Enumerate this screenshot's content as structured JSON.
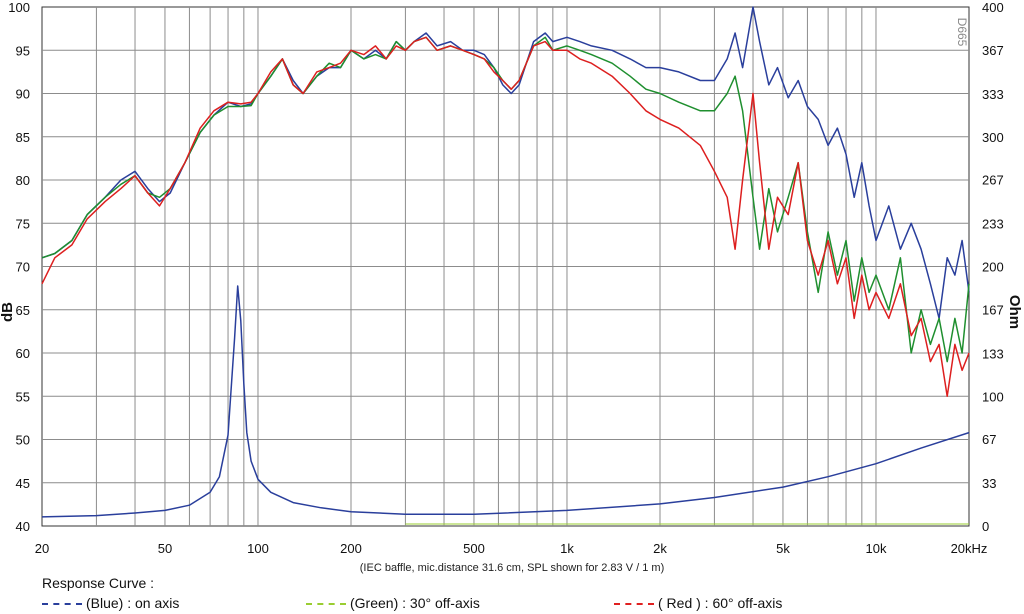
{
  "chart_data": {
    "type": "line",
    "x_scale": "log",
    "xlim": [
      20,
      20000
    ],
    "ylim_left": [
      40,
      100
    ],
    "ylim_right": [
      0,
      400
    ],
    "ylabel_left": "dB",
    "ylabel_right": "Ohm",
    "grid": true,
    "x_ticks": [
      "20",
      "50",
      "100",
      "200",
      "500",
      "1k",
      "2k",
      "5k",
      "10k",
      "20kHz"
    ],
    "x_tick_values": [
      20,
      50,
      100,
      200,
      500,
      1000,
      2000,
      5000,
      10000,
      20000
    ],
    "y_ticks_left": [
      100,
      95,
      90,
      85,
      80,
      75,
      70,
      65,
      60,
      55,
      50,
      45,
      40
    ],
    "y_ticks_right": [
      400,
      367,
      333,
      300,
      267,
      233,
      200,
      167,
      133,
      100,
      67,
      33,
      0
    ],
    "watermark": "D665",
    "note": "(IEC baffle, mic.distance 31.6 cm, SPL shown for 2.83 V / 1 m)",
    "legend_title": "Response Curve :",
    "legend": [
      {
        "label": "(Blue)  : on axis",
        "color": "#2a3f9c"
      },
      {
        "label": "(Green) : 30° off-axis",
        "color": "#9acd32"
      },
      {
        "label": "( Red )  : 60° off-axis",
        "color": "#e02020"
      }
    ],
    "series": [
      {
        "key": "on_axis",
        "color": "#2a3f9c",
        "axis": "left",
        "x": [
          20,
          22,
          25,
          28,
          32,
          36,
          40,
          44,
          48,
          52,
          58,
          65,
          72,
          80,
          88,
          95,
          100,
          110,
          120,
          130,
          140,
          155,
          170,
          185,
          200,
          220,
          240,
          260,
          280,
          300,
          320,
          350,
          380,
          420,
          460,
          500,
          540,
          580,
          620,
          660,
          700,
          780,
          850,
          900,
          1000,
          1100,
          1200,
          1400,
          1600,
          1800,
          2000,
          2300,
          2700,
          3000,
          3300,
          3500,
          3700,
          4000,
          4200,
          4500,
          4800,
          5200,
          5600,
          6000,
          6500,
          7000,
          7500,
          8000,
          8500,
          9000,
          9500,
          10000,
          11000,
          12000,
          13000,
          14000,
          15000,
          16000,
          17000,
          18000,
          19000,
          20000
        ],
        "y": [
          71,
          71.5,
          73,
          76,
          78,
          80,
          81,
          79,
          77.5,
          78.5,
          82,
          85.5,
          87.5,
          89,
          88.5,
          88.8,
          90,
          92,
          94,
          91.5,
          90,
          92,
          93,
          93,
          95,
          94,
          95,
          94,
          96,
          95,
          96,
          97,
          95.5,
          96,
          95,
          95,
          94.5,
          93,
          91,
          90,
          91,
          96,
          97,
          96,
          96.5,
          96,
          95.5,
          95,
          94,
          93,
          93,
          92.5,
          91.5,
          91.5,
          94,
          97,
          93,
          100,
          96,
          91,
          93,
          89.5,
          91.5,
          88.5,
          87,
          84,
          86,
          83,
          78,
          82,
          77,
          73,
          77,
          72,
          75,
          72,
          68,
          64,
          71,
          69,
          73,
          67
        ]
      },
      {
        "key": "off_30",
        "color": "#1f8f2f",
        "axis": "left",
        "x": [
          20,
          22,
          25,
          28,
          32,
          36,
          40,
          44,
          48,
          52,
          58,
          65,
          72,
          80,
          88,
          95,
          100,
          110,
          120,
          130,
          140,
          155,
          170,
          185,
          200,
          220,
          240,
          260,
          280,
          300,
          320,
          350,
          380,
          420,
          460,
          500,
          540,
          580,
          620,
          660,
          700,
          780,
          850,
          900,
          1000,
          1100,
          1200,
          1400,
          1600,
          1800,
          2000,
          2300,
          2700,
          3000,
          3300,
          3500,
          3700,
          4000,
          4200,
          4500,
          4800,
          5200,
          5600,
          6000,
          6500,
          7000,
          7500,
          8000,
          8500,
          9000,
          9500,
          10000,
          11000,
          12000,
          13000,
          14000,
          15000,
          16000,
          17000,
          18000,
          19000,
          20000
        ],
        "y": [
          71,
          71.5,
          73,
          76,
          78,
          79.5,
          80.5,
          78.5,
          78,
          79,
          82,
          85.5,
          87.5,
          88.5,
          88.5,
          88.6,
          90,
          92,
          94,
          91,
          90,
          92,
          93.5,
          93,
          95,
          94,
          94.5,
          94,
          96,
          95,
          96,
          96.5,
          95,
          95.5,
          95,
          94.5,
          94,
          93,
          91.5,
          90.5,
          91.5,
          95.5,
          96.5,
          95,
          95.5,
          95,
          94.5,
          93.5,
          92,
          90.5,
          90,
          89,
          88,
          88,
          90,
          92,
          88,
          78,
          72,
          79,
          74,
          78,
          82,
          74,
          67,
          74,
          69,
          73,
          66,
          71,
          67,
          69,
          65,
          71,
          60,
          65,
          61,
          64,
          59,
          64,
          60,
          68
        ]
      },
      {
        "key": "off_60",
        "color": "#dd1f1f",
        "axis": "left",
        "x": [
          20,
          22,
          25,
          28,
          32,
          36,
          40,
          44,
          48,
          52,
          58,
          65,
          72,
          80,
          88,
          95,
          100,
          110,
          120,
          130,
          140,
          155,
          170,
          185,
          200,
          220,
          240,
          260,
          280,
          300,
          320,
          350,
          380,
          420,
          460,
          500,
          540,
          580,
          620,
          660,
          700,
          780,
          850,
          900,
          1000,
          1100,
          1200,
          1400,
          1600,
          1800,
          2000,
          2300,
          2700,
          3000,
          3300,
          3500,
          3700,
          4000,
          4200,
          4500,
          4800,
          5200,
          5600,
          6000,
          6500,
          7000,
          7500,
          8000,
          8500,
          9000,
          9500,
          10000,
          11000,
          12000,
          13000,
          14000,
          15000,
          16000,
          17000,
          18000,
          19000,
          20000
        ],
        "y": [
          68,
          71,
          72.5,
          75.5,
          77.5,
          79,
          80.5,
          78.5,
          77,
          79,
          82,
          86,
          88,
          89,
          88.8,
          89,
          90,
          92.5,
          94,
          91,
          90,
          92.5,
          93,
          93.5,
          95,
          94.5,
          95.5,
          94,
          95.5,
          95,
          96,
          96.5,
          95,
          95.5,
          95,
          94.5,
          94,
          92.5,
          91.5,
          90.5,
          91.5,
          95.5,
          96,
          95,
          95,
          94,
          93.5,
          92,
          90,
          88,
          87,
          86,
          84,
          81,
          78,
          72,
          80,
          90,
          82,
          72,
          78,
          76,
          82,
          73,
          69,
          73,
          68,
          71,
          64,
          69,
          65,
          67,
          64,
          68,
          62,
          64,
          59,
          61,
          55,
          61,
          58,
          60
        ]
      },
      {
        "key": "impedance",
        "color": "#2a3f9c",
        "axis": "right",
        "x": [
          20,
          30,
          40,
          50,
          60,
          70,
          75,
          80,
          84,
          86,
          88,
          90,
          92,
          95,
          100,
          110,
          130,
          160,
          200,
          300,
          500,
          1000,
          2000,
          3000,
          5000,
          7000,
          10000,
          14000,
          20000
        ],
        "y": [
          7,
          8,
          10,
          12,
          16,
          26,
          38,
          70,
          145,
          185,
          158,
          110,
          72,
          50,
          36,
          26,
          18,
          14,
          11,
          9,
          9,
          12,
          17,
          22,
          30,
          38,
          48,
          60,
          72
        ]
      }
    ]
  }
}
